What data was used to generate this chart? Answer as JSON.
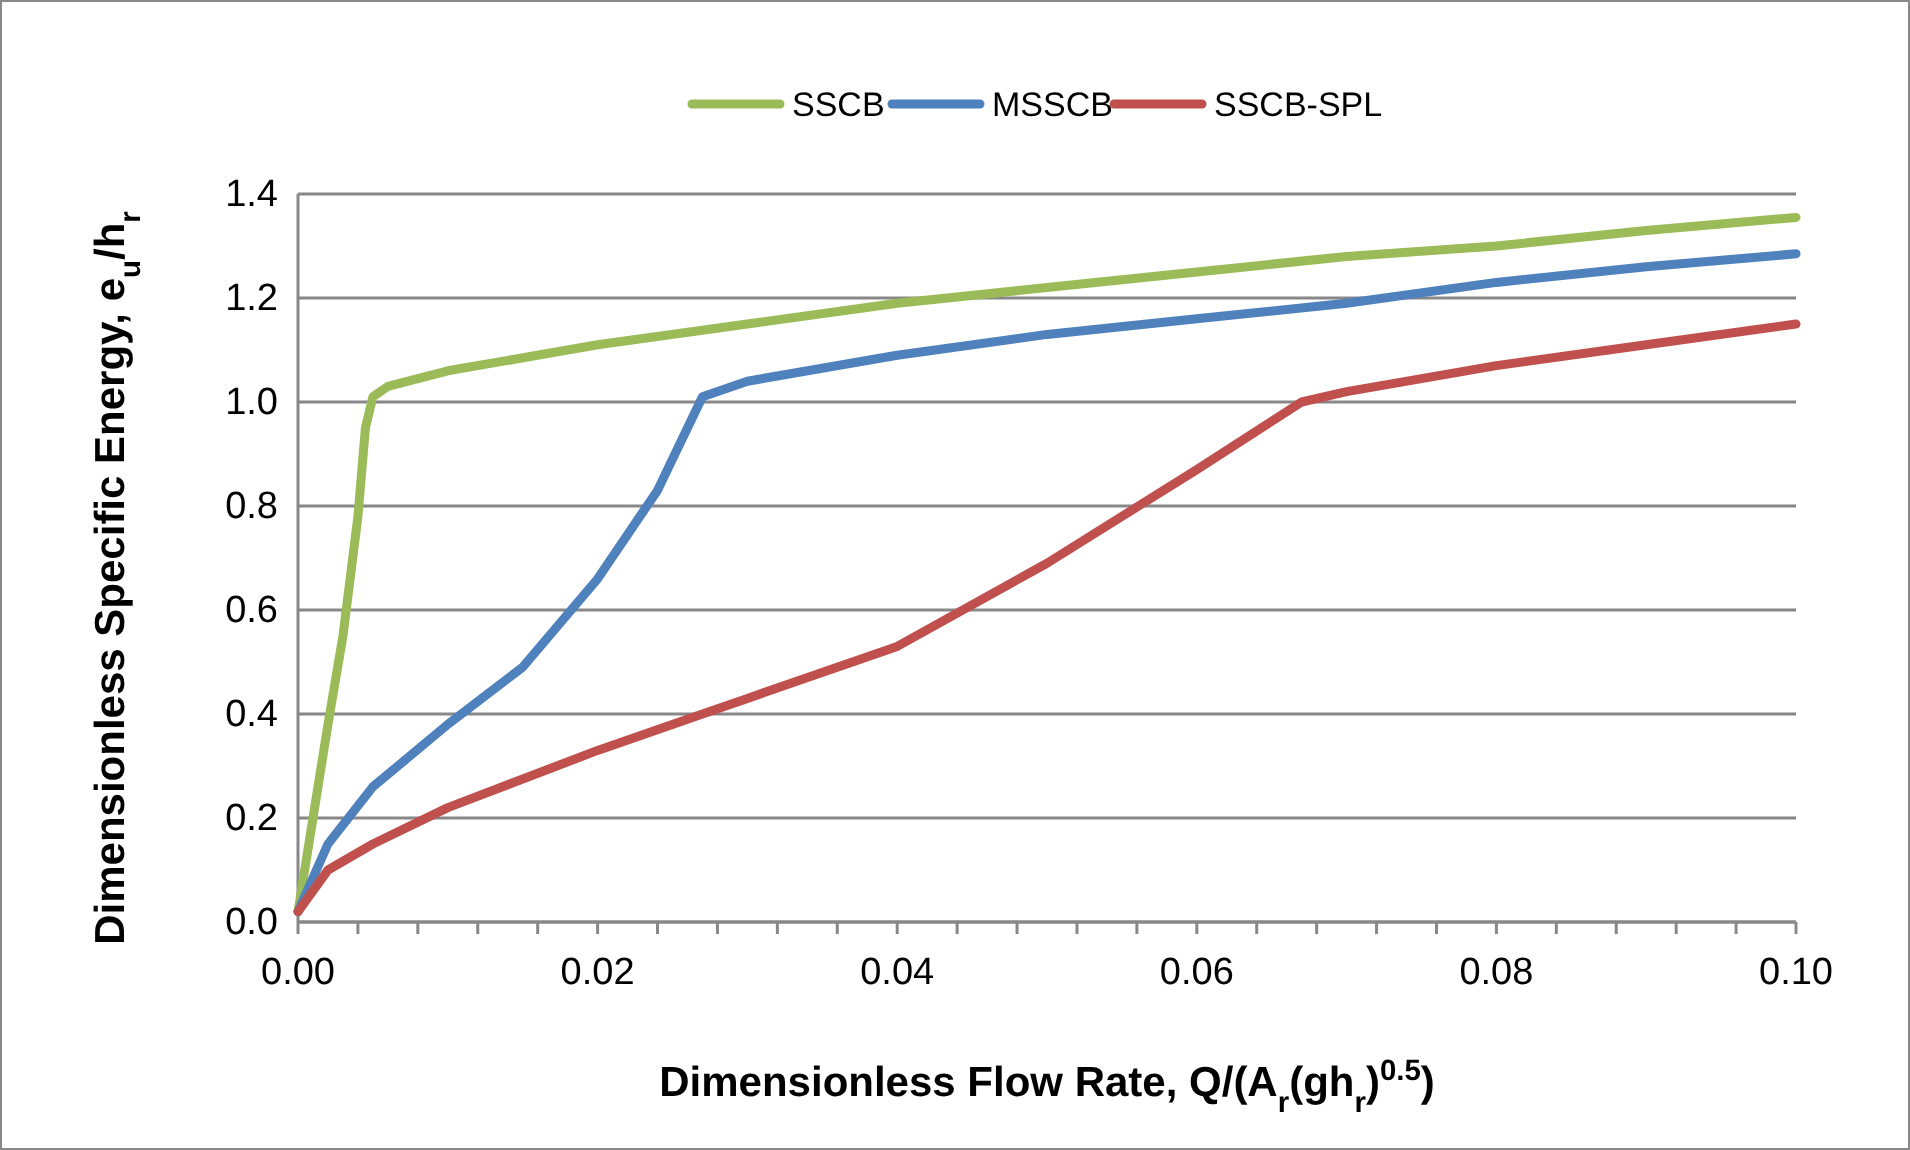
{
  "chart_data": {
    "type": "line",
    "xlabel": "Dimensionless Flow Rate, Q/(A$_{r}$(gh$_{r}$)$^{0.5}$)",
    "ylabel": "Dimensionless Specific Energy, e$_{u}$/h$_{r}$",
    "xlim": [
      0,
      0.1
    ],
    "ylim": [
      0,
      1.4
    ],
    "xticks": [
      {
        "value": 0,
        "label": "0.00"
      },
      {
        "value": 0.004,
        "label": null
      },
      {
        "value": 0.008,
        "label": null
      },
      {
        "value": 0.012,
        "label": null
      },
      {
        "value": 0.016,
        "label": null
      },
      {
        "value": 0.02,
        "label": "0.02"
      },
      {
        "value": 0.024,
        "label": null
      },
      {
        "value": 0.028,
        "label": null
      },
      {
        "value": 0.032,
        "label": null
      },
      {
        "value": 0.036,
        "label": null
      },
      {
        "value": 0.04,
        "label": "0.04"
      },
      {
        "value": 0.044,
        "label": null
      },
      {
        "value": 0.048,
        "label": null
      },
      {
        "value": 0.052,
        "label": null
      },
      {
        "value": 0.056,
        "label": null
      },
      {
        "value": 0.06,
        "label": "0.06"
      },
      {
        "value": 0.064,
        "label": null
      },
      {
        "value": 0.068,
        "label": null
      },
      {
        "value": 0.072,
        "label": null
      },
      {
        "value": 0.076,
        "label": null
      },
      {
        "value": 0.08,
        "label": "0.08"
      },
      {
        "value": 0.084,
        "label": null
      },
      {
        "value": 0.088,
        "label": null
      },
      {
        "value": 0.092,
        "label": null
      },
      {
        "value": 0.096,
        "label": null
      },
      {
        "value": 0.1,
        "label": "0.10"
      }
    ],
    "yticks": [
      {
        "value": 0,
        "label": "0.0"
      },
      {
        "value": 0.2,
        "label": "0.2"
      },
      {
        "value": 0.4,
        "label": "0.4"
      },
      {
        "value": 0.6,
        "label": "0.6"
      },
      {
        "value": 0.8,
        "label": "0.8"
      },
      {
        "value": 1,
        "label": "1.0"
      },
      {
        "value": 1.2,
        "label": "1.2"
      },
      {
        "value": 1.4,
        "label": "1.4"
      }
    ],
    "grid": "y",
    "legend": "top",
    "marker": "none",
    "line_style": "solid",
    "series": [
      {
        "name": "SSCB",
        "color": "#9bbb59",
        "x": [
          0,
          0.001,
          0.002,
          0.003,
          0.004,
          0.0045,
          0.005,
          0.006,
          0.01,
          0.02,
          0.03,
          0.04,
          0.05,
          0.06,
          0.07,
          0.08,
          0.09,
          0.1
        ],
        "values": [
          0.02,
          0.2,
          0.38,
          0.55,
          0.78,
          0.95,
          1.01,
          1.03,
          1.06,
          1.11,
          1.15,
          1.19,
          1.22,
          1.25,
          1.28,
          1.3,
          1.33,
          1.355
        ]
      },
      {
        "name": "MSSCB",
        "color": "#4f81bd",
        "x": [
          0,
          0.002,
          0.005,
          0.01,
          0.015,
          0.02,
          0.024,
          0.027,
          0.03,
          0.04,
          0.05,
          0.06,
          0.07,
          0.08,
          0.09,
          0.1
        ],
        "values": [
          0.02,
          0.15,
          0.26,
          0.38,
          0.49,
          0.66,
          0.83,
          1.01,
          1.04,
          1.09,
          1.13,
          1.16,
          1.19,
          1.23,
          1.26,
          1.285
        ]
      },
      {
        "name": "SSCB-SPL",
        "color": "#c0504d",
        "x": [
          0,
          0.002,
          0.005,
          0.01,
          0.02,
          0.027,
          0.03,
          0.04,
          0.05,
          0.06,
          0.067,
          0.07,
          0.08,
          0.09,
          0.1
        ],
        "values": [
          0.02,
          0.1,
          0.15,
          0.22,
          0.33,
          0.4,
          0.43,
          0.53,
          0.69,
          0.87,
          1.0,
          1.02,
          1.07,
          1.11,
          1.15
        ]
      }
    ]
  }
}
